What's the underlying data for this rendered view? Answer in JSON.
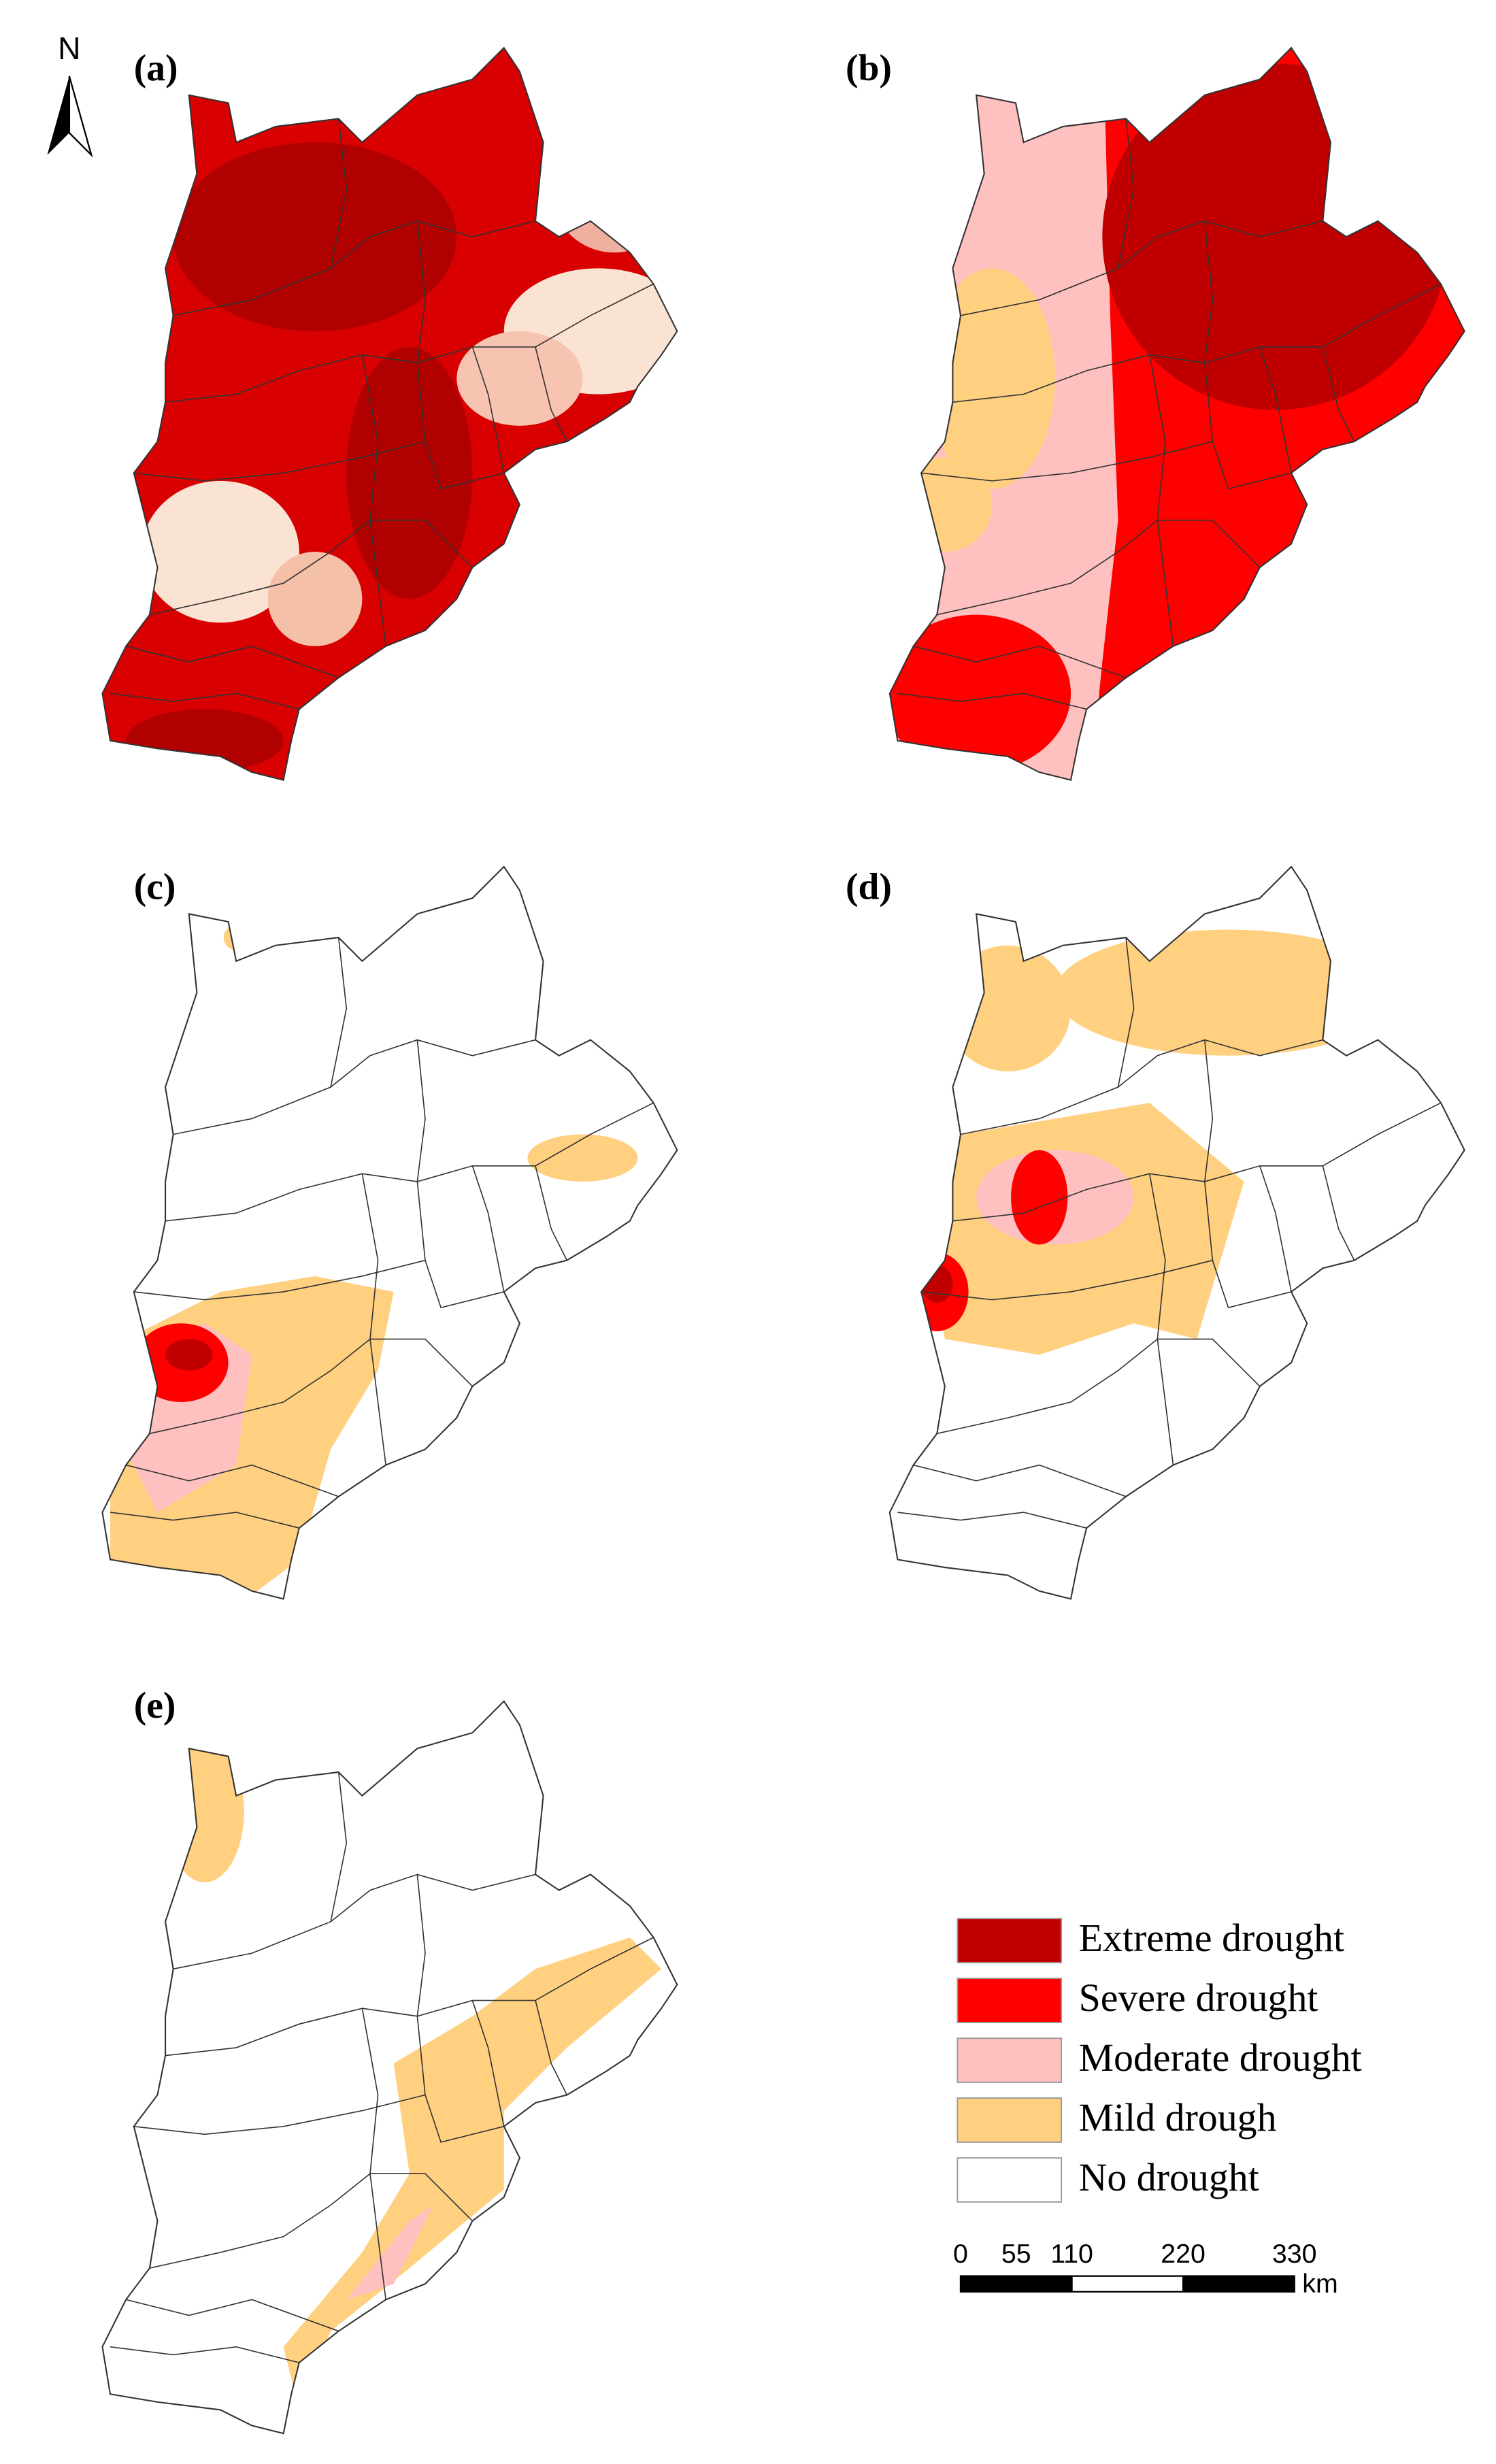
{
  "panels": [
    {
      "label": "(a)"
    },
    {
      "label": "(b)"
    },
    {
      "label": "(c)"
    },
    {
      "label": "(d)"
    },
    {
      "label": "(e)"
    }
  ],
  "north_arrow": {
    "label": "N"
  },
  "legend": [
    {
      "label": "Extreme drought",
      "color": "#c00000"
    },
    {
      "label": "Severe drought",
      "color": "#ff0000"
    },
    {
      "label": "Moderate drought",
      "color": "#ffc0c0"
    },
    {
      "label": "Mild drough",
      "color": "#ffd080"
    },
    {
      "label": "No drought",
      "color": "#ffffff"
    }
  ],
  "scale_bar": {
    "ticks": [
      0,
      55,
      110,
      220,
      330
    ],
    "unit": "km"
  }
}
